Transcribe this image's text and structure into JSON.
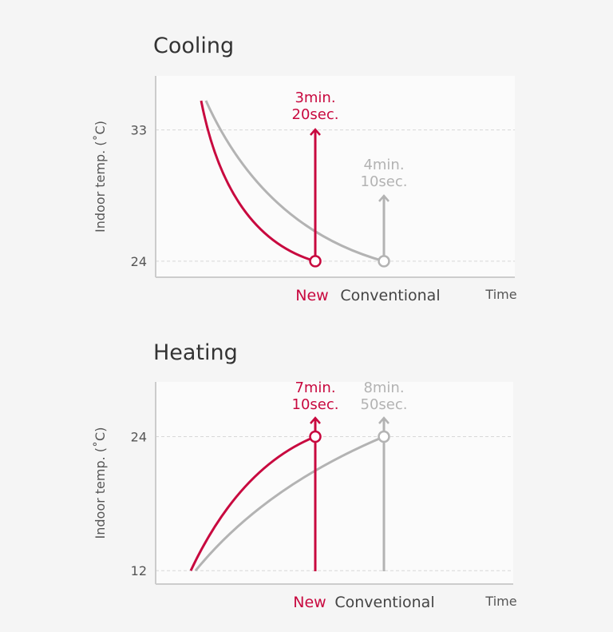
{
  "colors": {
    "new": "#c8093f",
    "conventional": "#b3b3b3",
    "text": "#555555",
    "grid": "#d8d8d8"
  },
  "chart_data": [
    {
      "type": "line",
      "title": "Cooling",
      "ylabel": "Indoor temp. (˚C)",
      "xlabel": "Time",
      "yticks": [
        "33",
        "24"
      ],
      "ytick_values": [
        33,
        24
      ],
      "ylim": [
        22.9,
        36.7
      ],
      "grid": true,
      "series": [
        {
          "name": "New",
          "start_temp": 35,
          "end_temp": 24,
          "time_label": [
            "3min.",
            "20sec."
          ],
          "time_minutes": 3.33
        },
        {
          "name": "Conventional",
          "start_temp": 35,
          "end_temp": 24,
          "time_label": [
            "4min.",
            "10sec."
          ],
          "time_minutes": 4.17
        }
      ]
    },
    {
      "type": "line",
      "title": "Heating",
      "ylabel": "Indoor temp. (˚C)",
      "xlabel": "Time",
      "yticks": [
        "24",
        "12"
      ],
      "ytick_values": [
        24,
        12
      ],
      "ylim": [
        10.8,
        28.9
      ],
      "grid": true,
      "series": [
        {
          "name": "New",
          "start_temp": 12,
          "end_temp": 24,
          "time_label": [
            "7min.",
            "10sec."
          ],
          "time_minutes": 7.17
        },
        {
          "name": "Conventional",
          "start_temp": 12,
          "end_temp": 24,
          "time_label": [
            "8min.",
            "50sec."
          ],
          "time_minutes": 8.83
        }
      ]
    }
  ]
}
